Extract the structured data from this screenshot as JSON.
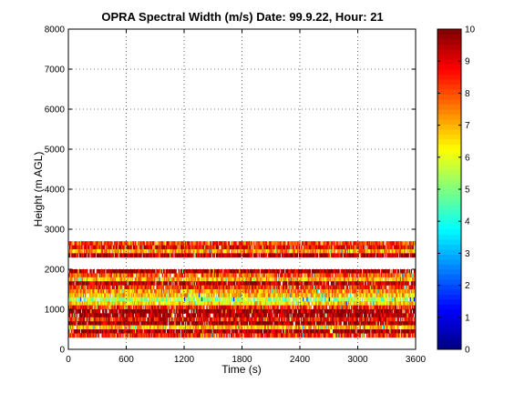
{
  "chart_data": {
    "type": "heatmap",
    "title": "OPRA Spectral Width (m/s)  Date: 99.9.22, Hour: 21",
    "xlabel": "Time (s)",
    "ylabel": "Height (m AGL)",
    "xlim": [
      0,
      3600
    ],
    "ylim": [
      0,
      8000
    ],
    "xticks": [
      0,
      600,
      1200,
      1800,
      2400,
      3000,
      3600
    ],
    "yticks": [
      0,
      1000,
      2000,
      3000,
      4000,
      5000,
      6000,
      7000,
      8000
    ],
    "grid": true,
    "colorbar": {
      "range": [
        0,
        10
      ],
      "ticks": [
        0,
        1,
        2,
        3,
        4,
        5,
        6,
        7,
        8,
        9,
        10
      ],
      "colormap": "jet"
    },
    "layers": [
      {
        "height_min": 2600,
        "height_max": 2700,
        "value": 8.2
      },
      {
        "height_min": 2500,
        "height_max": 2600,
        "value": 8.8
      },
      {
        "height_min": 2400,
        "height_max": 2500,
        "value": 7.2
      },
      {
        "height_min": 2300,
        "height_max": 2400,
        "value": 9.6
      },
      {
        "height_min": 1900,
        "height_max": 2000,
        "value": 9.7
      },
      {
        "height_min": 1800,
        "height_max": 1900,
        "value": 8.0
      },
      {
        "height_min": 1700,
        "height_max": 1800,
        "value": 7.0
      },
      {
        "height_min": 1600,
        "height_max": 1700,
        "value": 9.5
      },
      {
        "height_min": 1500,
        "height_max": 1600,
        "value": 8.5
      },
      {
        "height_min": 1400,
        "height_max": 1500,
        "value": 7.4
      },
      {
        "height_min": 1300,
        "height_max": 1400,
        "value": 6.8
      },
      {
        "height_min": 1200,
        "height_max": 1300,
        "value": 5.5
      },
      {
        "height_min": 1100,
        "height_max": 1200,
        "value": 6.6
      },
      {
        "height_min": 1000,
        "height_max": 1100,
        "value": 8.6
      },
      {
        "height_min": 900,
        "height_max": 1000,
        "value": 9.8
      },
      {
        "height_min": 800,
        "height_max": 900,
        "value": 9.7
      },
      {
        "height_min": 700,
        "height_max": 800,
        "value": 8.8
      },
      {
        "height_min": 600,
        "height_max": 700,
        "value": 9.8
      },
      {
        "height_min": 500,
        "height_max": 600,
        "value": 7.0
      },
      {
        "height_min": 400,
        "height_max": 500,
        "value": 9.7
      },
      {
        "height_min": 300,
        "height_max": 400,
        "value": 8.4
      }
    ]
  }
}
